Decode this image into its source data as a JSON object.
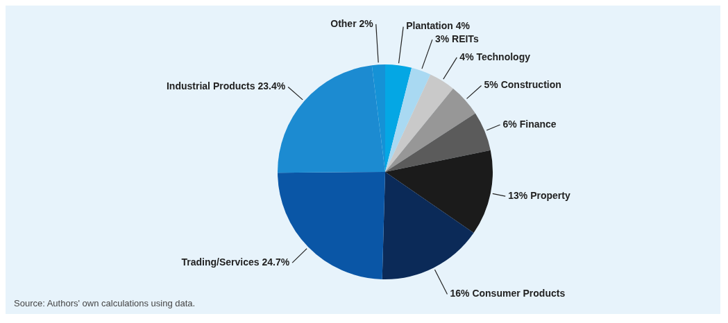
{
  "chart_data": {
    "type": "pie",
    "categories": [
      "Plantation",
      "REITs",
      "Technology",
      "Construction",
      "Finance",
      "Property",
      "Consumer Products",
      "Trading/Services",
      "Industrial Products",
      "Other"
    ],
    "values": [
      4,
      3,
      4,
      5,
      6,
      13,
      16,
      24.7,
      23.4,
      2
    ],
    "value_labels": [
      "4%",
      "3%",
      "4%",
      "5%",
      "6%",
      "13%",
      "16%",
      "24.7%",
      "23.4%",
      "2%"
    ],
    "colors": [
      "#04a7e4",
      "#a9d9f2",
      "#c9c9c9",
      "#979797",
      "#5b5b5b",
      "#1b1b1b",
      "#0b2a58",
      "#0a56a6",
      "#1c8bd1",
      "#1592d6"
    ],
    "annotations": [
      "Source: Authors' own calculations using data."
    ],
    "legend": false
  }
}
